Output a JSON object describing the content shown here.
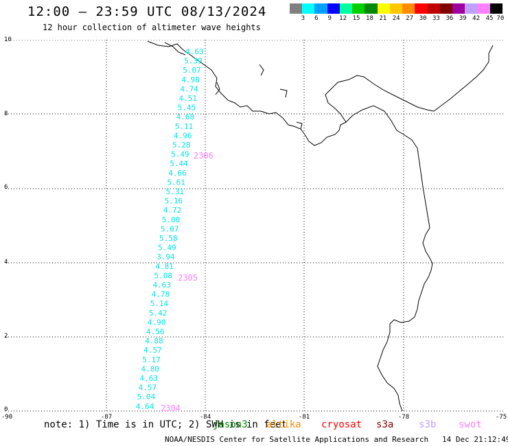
{
  "header": {
    "title": "12:00 – 23:59 UTC 08/13/2024",
    "subtitle": "12 hour collection of altimeter wave heights"
  },
  "legend": {
    "colors": [
      "#808080",
      "#00ffff",
      "#00a0ff",
      "#0000ff",
      "#00ffa0",
      "#00d000",
      "#008800",
      "#ffff00",
      "#ffc800",
      "#ff8c00",
      "#ff0000",
      "#c00000",
      "#800000",
      "#a000a0",
      "#c0a0ff",
      "#ff80ff",
      "#000000"
    ],
    "labels": [
      "3",
      "6",
      "9",
      "12",
      "15",
      "18",
      "21",
      "24",
      "27",
      "30",
      "33",
      "36",
      "39",
      "42",
      "45",
      "70 (ft)"
    ]
  },
  "axes": {
    "y_ticks": [
      "10",
      "8",
      "6",
      "4",
      "2",
      "0"
    ],
    "x_ticks": [
      "-90",
      "-87",
      "-84",
      "-81",
      "-78",
      "-75"
    ]
  },
  "wave_heights": [
    "4.63",
    "5.39",
    "5.07",
    "4.98",
    "4.74",
    "4.51",
    "5.45",
    "4.68",
    "5.11",
    "4.96",
    "5.28",
    "5.49",
    "5.44",
    "4.66",
    "5.61",
    "5.31",
    "5.16",
    "4.72",
    "5.00",
    "5.07",
    "5.58",
    "5.49",
    "3.94",
    "4.81",
    "5.08",
    "4.63",
    "4.78",
    "5.14",
    "5.42",
    "4.90",
    "4.56",
    "4.88",
    "4.57",
    "5.17",
    "4.80",
    "4.63",
    "4.57",
    "5.04",
    "4.64"
  ],
  "pass_times": [
    "2306",
    "2305",
    "2304"
  ],
  "note": {
    "text": "note: 1) Time is in UTC; 2) SWH is in feet",
    "satellites": [
      {
        "name": "jason3",
        "color": "#008800"
      },
      {
        "name": "altika",
        "color": "#ff8c00"
      },
      {
        "name": "cryosat",
        "color": "#ff0000"
      },
      {
        "name": "s3a",
        "color": "#800000"
      },
      {
        "name": "s3b",
        "color": "#c0a0ff"
      },
      {
        "name": "swot",
        "color": "#ff80ff"
      }
    ]
  },
  "footer": {
    "credit": "NOAA/NESDIS Center for Satellite Applications and Research",
    "timestamp": "14 Dec 21:12:49 UTC 2024"
  }
}
